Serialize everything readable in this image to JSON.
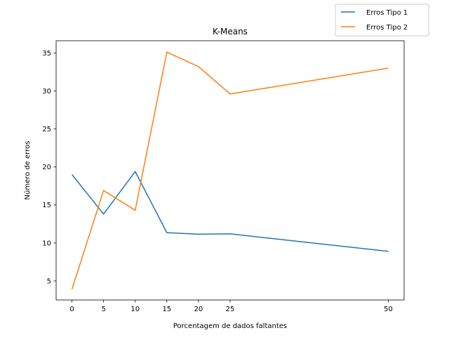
{
  "chart_data": {
    "type": "line",
    "title": "K-Means",
    "xlabel": "Porcentagem de dados faltantes",
    "ylabel": "Número de erros",
    "x": [
      0,
      5,
      10,
      15,
      20,
      25,
      50
    ],
    "xticks": [
      0,
      5,
      10,
      15,
      20,
      25,
      50
    ],
    "xtick_labels": [
      "0",
      "5",
      "10",
      "15",
      "20",
      "25",
      "50"
    ],
    "xlim": [
      -2.5,
      52.5
    ],
    "yticks": [
      5,
      10,
      15,
      20,
      25,
      30,
      35
    ],
    "ytick_labels": [
      "5",
      "10",
      "15",
      "20",
      "25",
      "30",
      "35"
    ],
    "ylim": [
      2.5,
      36.6
    ],
    "grid": false,
    "legend_position": "top-right, outside",
    "series": [
      {
        "name": "Erros Tipo 1",
        "color": "#1f77b4",
        "values": [
          19.0,
          13.8,
          19.4,
          11.35,
          11.15,
          11.2,
          8.9
        ]
      },
      {
        "name": "Erros Tipo 2",
        "color": "#ff7f0e",
        "values": [
          3.9,
          16.9,
          14.3,
          35.1,
          33.2,
          29.6,
          33.0
        ]
      }
    ]
  }
}
